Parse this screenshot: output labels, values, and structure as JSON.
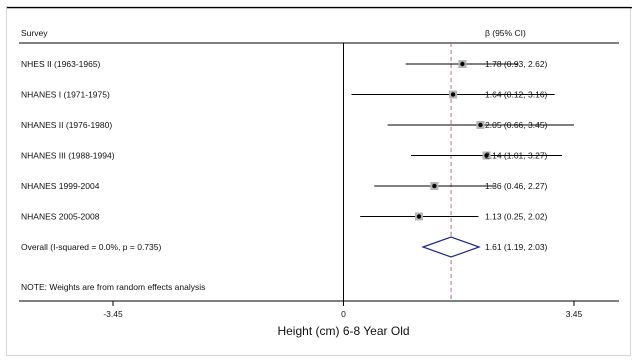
{
  "chart_data": {
    "type": "forest",
    "header": {
      "left": "Survey",
      "right": "β (95% CI)"
    },
    "studies": [
      {
        "label": "NHES II (1963-1965)",
        "est": 1.78,
        "lo": 0.93,
        "hi": 2.62,
        "ci_text": "1.78 (0.93, 2.62)"
      },
      {
        "label": "NHANES I (1971-1975)",
        "est": 1.64,
        "lo": 0.12,
        "hi": 3.16,
        "ci_text": "1.64 (0.12, 3.16)"
      },
      {
        "label": "NHANES II (1976-1980)",
        "est": 2.05,
        "lo": 0.66,
        "hi": 3.45,
        "ci_text": "2.05 (0.66, 3.45)"
      },
      {
        "label": "NHANES III (1988-1994)",
        "est": 2.14,
        "lo": 1.01,
        "hi": 3.27,
        "ci_text": "2.14 (1.01, 3.27)"
      },
      {
        "label": "NHANES 1999-2004",
        "est": 1.36,
        "lo": 0.46,
        "hi": 2.27,
        "ci_text": "1.36 (0.46, 2.27)"
      },
      {
        "label": "NHANES 2005-2008",
        "est": 1.13,
        "lo": 0.25,
        "hi": 2.02,
        "ci_text": "1.13 (0.25, 2.02)"
      }
    ],
    "overall": {
      "label": "Overall  (I-squared = 0.0%, p = 0.735)",
      "est": 1.61,
      "lo": 1.19,
      "hi": 2.03,
      "ci_text": "1.61 (1.19, 2.03)"
    },
    "note": "NOTE: Weights are from random effects analysis",
    "xticks": [
      {
        "value": -3.45,
        "label": "-3.45"
      },
      {
        "value": 0,
        "label": "0"
      },
      {
        "value": 3.45,
        "label": "3.45"
      }
    ],
    "xlim": [
      -3.45,
      3.45
    ],
    "xlabel": "Height (cm) 6-8 Year Old",
    "reference_line": 0,
    "overall_line": 1.61,
    "colors": {
      "diamond": "#1f2a8a",
      "overall_line": "#c0707c",
      "marker": "#000000",
      "box": "#b5b5b5"
    }
  }
}
